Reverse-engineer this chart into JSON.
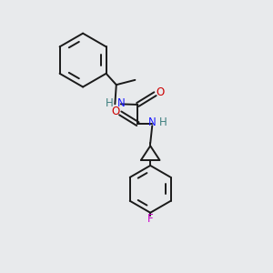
{
  "bg_color": "#e8eaec",
  "atom_colors": {
    "N": "#1a1aff",
    "O": "#cc0000",
    "H": "#408080",
    "F": "#cc00cc"
  },
  "bond_color": "#1a1a1a",
  "bond_width": 1.4,
  "figsize": [
    3.0,
    3.0
  ],
  "dpi": 100
}
